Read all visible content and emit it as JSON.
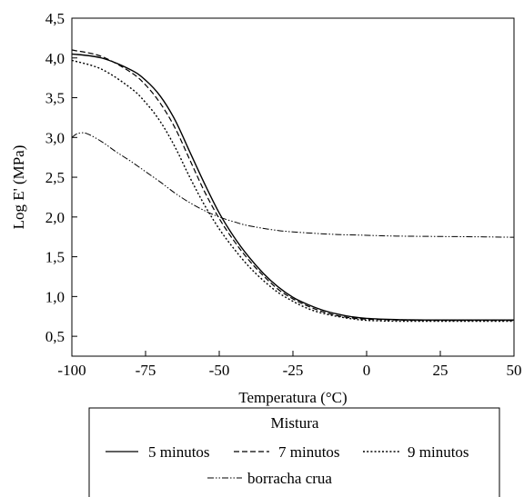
{
  "chart_data": {
    "type": "line",
    "xlabel": "Temperatura (°C)",
    "ylabel": "Log E' (MPa)",
    "xlim": [
      -100,
      50
    ],
    "ylim": [
      0.25,
      4.5
    ],
    "xticks": [
      -100,
      -75,
      -50,
      -25,
      0,
      25,
      50
    ],
    "xtick_labels": [
      "-100",
      "-75",
      "-50",
      "-25",
      "0",
      "25",
      "50"
    ],
    "yticks": [
      0.5,
      1.0,
      1.5,
      2.0,
      2.5,
      3.0,
      3.5,
      4.0,
      4.5
    ],
    "ytick_labels": [
      "0,5",
      "1,0",
      "1,5",
      "2,0",
      "2,5",
      "3,0",
      "3,5",
      "4,0",
      "4,5"
    ],
    "grid": false,
    "legend": {
      "title": "Mistura",
      "placement": "below"
    },
    "series": [
      {
        "name": "5 minutos",
        "style": "solid",
        "color": "#000000",
        "x": [
          -100,
          -90,
          -80,
          -75,
          -70,
          -65,
          -60,
          -55,
          -50,
          -45,
          -40,
          -35,
          -30,
          -25,
          -20,
          -15,
          -10,
          -5,
          0,
          10,
          20,
          30,
          40,
          50
        ],
        "y": [
          4.05,
          4.0,
          3.85,
          3.72,
          3.52,
          3.22,
          2.82,
          2.42,
          2.05,
          1.75,
          1.5,
          1.29,
          1.12,
          0.99,
          0.9,
          0.83,
          0.78,
          0.745,
          0.725,
          0.71,
          0.705,
          0.705,
          0.705,
          0.705
        ]
      },
      {
        "name": "7 minutos",
        "style": "dashed",
        "color": "#000000",
        "x": [
          -100,
          -90,
          -80,
          -75,
          -70,
          -65,
          -60,
          -55,
          -50,
          -45,
          -40,
          -35,
          -30,
          -25,
          -20,
          -15,
          -10,
          -5,
          0,
          10,
          20,
          30,
          40,
          50
        ],
        "y": [
          4.1,
          4.02,
          3.82,
          3.66,
          3.43,
          3.12,
          2.72,
          2.32,
          1.98,
          1.7,
          1.46,
          1.26,
          1.09,
          0.97,
          0.88,
          0.81,
          0.76,
          0.73,
          0.715,
          0.705,
          0.7,
          0.7,
          0.7,
          0.7
        ]
      },
      {
        "name": "9 minutos",
        "style": "dotted",
        "color": "#000000",
        "x": [
          -100,
          -90,
          -80,
          -75,
          -70,
          -65,
          -60,
          -55,
          -50,
          -45,
          -40,
          -35,
          -30,
          -25,
          -20,
          -15,
          -10,
          -5,
          0,
          10,
          20,
          30,
          40,
          50
        ],
        "y": [
          3.97,
          3.86,
          3.62,
          3.44,
          3.2,
          2.88,
          2.5,
          2.15,
          1.85,
          1.6,
          1.38,
          1.2,
          1.05,
          0.94,
          0.85,
          0.79,
          0.75,
          0.72,
          0.7,
          0.69,
          0.69,
          0.69,
          0.69,
          0.69
        ]
      },
      {
        "name": "borracha crua",
        "style": "dash-dot-dot",
        "color": "#000000",
        "x": [
          -100,
          -98,
          -95,
          -90,
          -85,
          -80,
          -75,
          -70,
          -65,
          -60,
          -55,
          -50,
          -45,
          -40,
          -30,
          -20,
          -10,
          0,
          10,
          25,
          40,
          50
        ],
        "y": [
          3.0,
          3.05,
          3.05,
          2.95,
          2.82,
          2.7,
          2.57,
          2.44,
          2.3,
          2.18,
          2.08,
          2.0,
          1.94,
          1.89,
          1.83,
          1.8,
          1.78,
          1.77,
          1.76,
          1.755,
          1.75,
          1.745
        ]
      }
    ]
  }
}
